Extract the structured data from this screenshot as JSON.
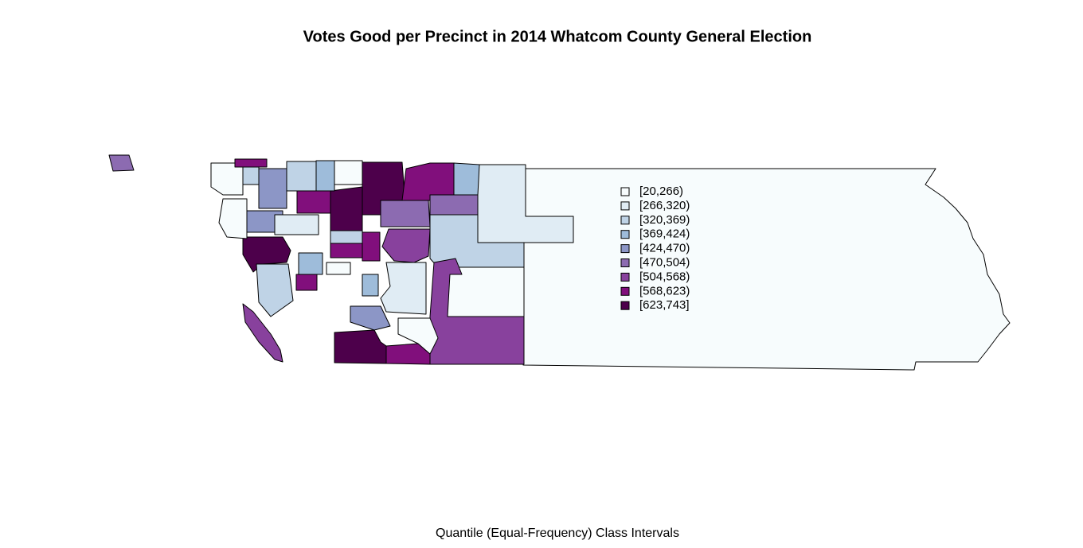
{
  "map": {
    "title": "Votes Good per Precinct in 2014 Whatcom County General Election",
    "subtitle": "Quantile (Equal-Frequency) Class Intervals",
    "legend": [
      {
        "label": "[20,266)",
        "color": "#f7fcfd"
      },
      {
        "label": "[266,320)",
        "color": "#e0ecf4"
      },
      {
        "label": "[320,369)",
        "color": "#bfd3e6"
      },
      {
        "label": "[369,424)",
        "color": "#9ebcda"
      },
      {
        "label": "[424,470)",
        "color": "#8c96c6"
      },
      {
        "label": "[470,504)",
        "color": "#8c6bb1"
      },
      {
        "label": "[504,568)",
        "color": "#88419d"
      },
      {
        "label": "[568,623)",
        "color": "#810f7c"
      },
      {
        "label": "[623,743]",
        "color": "#4d004b"
      }
    ]
  }
}
